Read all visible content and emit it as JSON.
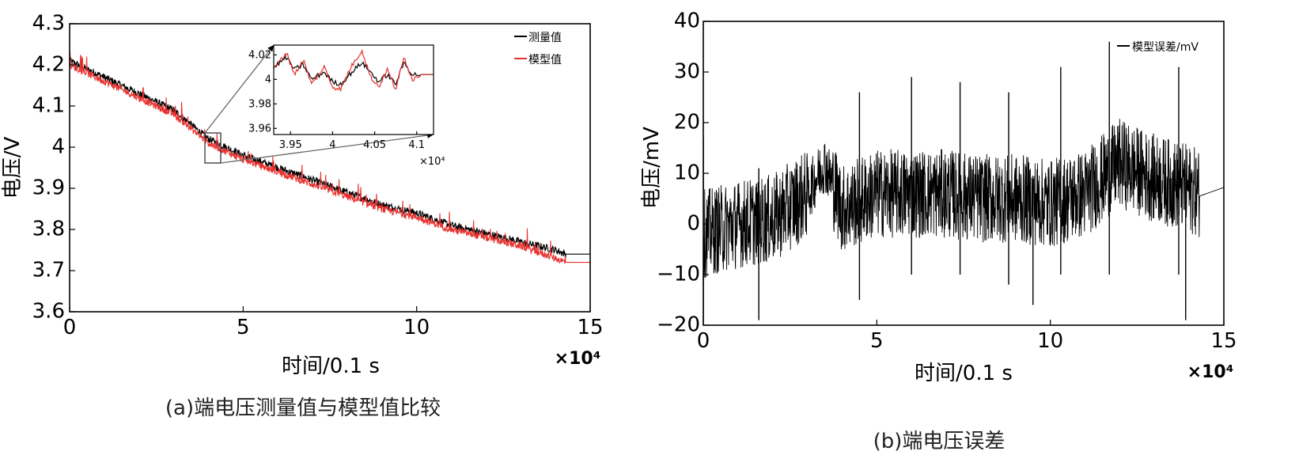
{
  "chart_data": [
    {
      "type": "line",
      "caption": "(a)端电压测量值与模型值比较",
      "xlabel": "时间/0.1 s",
      "ylabel": "电压/V",
      "x_multiplier": "×10⁴",
      "xlim": [
        0,
        15
      ],
      "ylim": [
        3.6,
        4.3
      ],
      "x_ticks": [
        "0",
        "5",
        "10",
        "15"
      ],
      "y_ticks": [
        "3.6",
        "3.7",
        "3.8",
        "3.9",
        "4",
        "4.1",
        "4.2",
        "4.3"
      ],
      "legend_position": "top-right",
      "series": [
        {
          "name": "测量值",
          "color": "#000000",
          "x": [
            0,
            1,
            2,
            3,
            4,
            5,
            6,
            7,
            8,
            9,
            10,
            11,
            12,
            13,
            14,
            14.3,
            15
          ],
          "values": [
            4.21,
            4.17,
            4.13,
            4.09,
            4.02,
            3.98,
            3.95,
            3.92,
            3.89,
            3.86,
            3.84,
            3.81,
            3.79,
            3.77,
            3.75,
            3.74,
            3.74
          ]
        },
        {
          "name": "模型值",
          "color": "#e8312e",
          "x": [
            0,
            1,
            2,
            3,
            4,
            5,
            6,
            7,
            8,
            9,
            10,
            11,
            12,
            13,
            14,
            14.3,
            15
          ],
          "values": [
            4.2,
            4.16,
            4.12,
            4.08,
            4.01,
            3.97,
            3.94,
            3.91,
            3.88,
            3.85,
            3.83,
            3.8,
            3.78,
            3.76,
            3.73,
            3.72,
            3.72
          ]
        }
      ],
      "inset": {
        "xlim": [
          3.93,
          4.12
        ],
        "ylim": [
          3.955,
          4.028
        ],
        "x_ticks": [
          "3.95",
          "4",
          "4.05",
          "4.1"
        ],
        "y_ticks": [
          "3.96",
          "3.98",
          "4",
          "4.02"
        ],
        "x_multiplier": "×10⁴",
        "zoom_region": {
          "x": [
            3.93,
            4.12
          ],
          "y": [
            3.955,
            4.028
          ]
        },
        "series": [
          {
            "name": "测量值",
            "x": [
              3.93,
              3.945,
              3.955,
              3.965,
              3.975,
              3.99,
              4.0,
              4.01,
              4.02,
              4.035,
              4.045,
              4.055,
              4.065,
              4.075,
              4.085,
              4.095,
              4.105,
              4.12
            ],
            "values": [
              4.01,
              4.018,
              4.008,
              4.012,
              4.0,
              4.006,
              3.998,
              3.996,
              4.004,
              4.014,
              4.006,
              3.998,
              4.004,
              3.996,
              4.014,
              4.004,
              4.004,
              4.004
            ]
          },
          {
            "name": "模型值",
            "x": [
              3.93,
              3.945,
              3.955,
              3.965,
              3.975,
              3.99,
              4.0,
              4.01,
              4.02,
              4.035,
              4.045,
              4.055,
              4.065,
              4.075,
              4.085,
              4.095,
              4.105,
              4.12
            ],
            "values": [
              4.008,
              4.022,
              4.004,
              4.016,
              3.996,
              4.01,
              3.994,
              3.992,
              4.008,
              4.024,
              4.002,
              3.994,
              4.008,
              3.992,
              4.018,
              4.0,
              4.004,
              4.004
            ]
          }
        ]
      }
    },
    {
      "type": "line",
      "caption": "(b)端电压误差",
      "xlabel": "时间/0.1 s",
      "ylabel": "电压/mV",
      "x_multiplier": "×10⁴",
      "xlim": [
        0,
        15
      ],
      "ylim": [
        -20,
        40
      ],
      "x_ticks": [
        "0",
        "5",
        "10",
        "15"
      ],
      "y_ticks": [
        "−20",
        "−10",
        "0",
        "10",
        "20",
        "30",
        "40"
      ],
      "legend_position": "top-right",
      "series": [
        {
          "name": "模型误差/mV",
          "color": "#000000",
          "x": [
            0,
            1,
            2,
            3,
            3.5,
            4,
            5,
            6,
            7,
            8,
            9,
            10,
            11,
            12,
            13,
            14,
            14.3,
            15
          ],
          "values": [
            -2,
            0,
            1,
            6,
            12,
            3,
            6,
            6,
            6,
            5,
            5,
            4,
            6,
            12,
            9,
            7,
            6,
            7
          ]
        }
      ],
      "spikes": [
        {
          "x": 0.0,
          "values": [
            17,
            -19
          ]
        },
        {
          "x": 1.6,
          "values": [
            11,
            -19
          ]
        },
        {
          "x": 4.5,
          "values": [
            26,
            -15
          ]
        },
        {
          "x": 6.0,
          "values": [
            29,
            -10
          ]
        },
        {
          "x": 7.4,
          "values": [
            28,
            -10
          ]
        },
        {
          "x": 8.8,
          "values": [
            26,
            -12
          ]
        },
        {
          "x": 9.5,
          "values": [
            5,
            -16
          ]
        },
        {
          "x": 10.3,
          "values": [
            31,
            -10
          ]
        },
        {
          "x": 11.7,
          "values": [
            36,
            -10
          ]
        },
        {
          "x": 13.7,
          "values": [
            31,
            -10
          ]
        },
        {
          "x": 13.9,
          "values": [
            5,
            -19
          ]
        }
      ]
    }
  ]
}
